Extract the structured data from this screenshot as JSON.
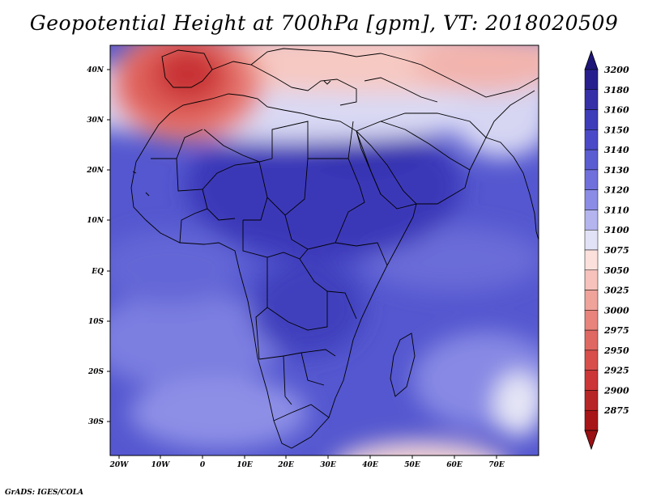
{
  "title": "Geopotential Height at 700hPa [gpm], VT: 2018020509",
  "credit": "GrADS: IGES/COLA",
  "map": {
    "lon_ticks": [
      "20W",
      "10W",
      "0",
      "10E",
      "20E",
      "30E",
      "40E",
      "50E",
      "60E",
      "70E"
    ],
    "lat_ticks": [
      "40N",
      "30N",
      "20N",
      "10N",
      "EQ",
      "10S",
      "20S",
      "30S"
    ],
    "lon_range": [
      -22,
      80
    ],
    "lat_range": [
      -37,
      45
    ]
  },
  "legend": {
    "levels": [
      "3200",
      "3180",
      "3160",
      "3150",
      "3140",
      "3130",
      "3120",
      "3110",
      "3100",
      "3075",
      "3050",
      "3025",
      "3000",
      "2975",
      "2950",
      "2925",
      "2900",
      "2875"
    ],
    "colors": [
      "#281f8e",
      "#3530a8",
      "#3d3dba",
      "#4a4ac8",
      "#5a5cd2",
      "#6f70dc",
      "#8b8ce6",
      "#b4b5ef",
      "#e2e2f6",
      "#fbe0dc",
      "#f6c2bb",
      "#efa39b",
      "#e8847c",
      "#e06862",
      "#d84e4b",
      "#cc3637",
      "#b82526",
      "#a81518"
    ],
    "top_arrow_color": "#1e1578",
    "bottom_arrow_color": "#9a1014"
  }
}
